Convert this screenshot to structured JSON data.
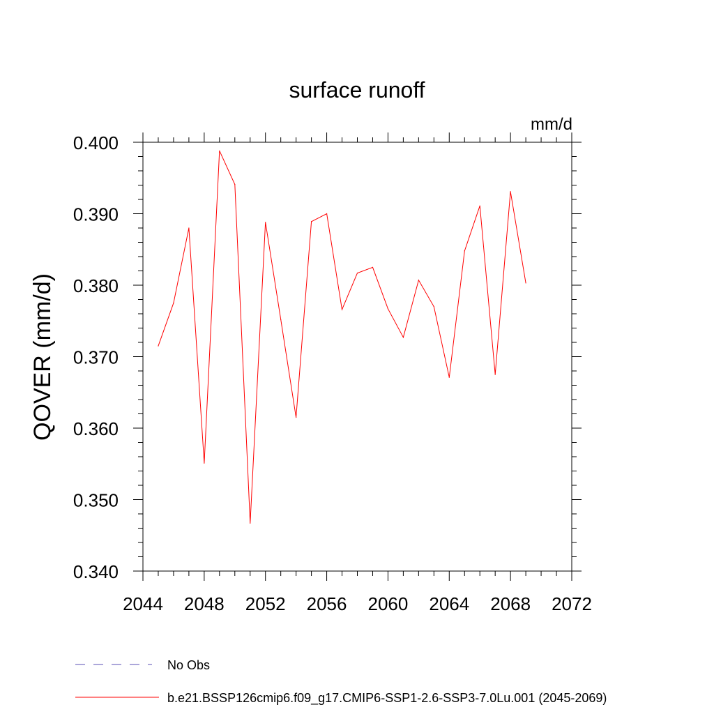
{
  "chart_data": {
    "type": "line",
    "title": "surface runoff",
    "units": "mm/d",
    "ylabel": "QOVER  (mm/d)",
    "xlabel": "",
    "xlim": [
      2044,
      2072
    ],
    "ylim": [
      0.34,
      0.4
    ],
    "x_ticks": [
      "2044",
      "2048",
      "2052",
      "2056",
      "2060",
      "2064",
      "2068",
      "2072"
    ],
    "y_ticks": [
      "0.340",
      "0.350",
      "0.360",
      "0.370",
      "0.380",
      "0.390",
      "0.400"
    ],
    "grid": false,
    "legend_position": "bottom",
    "series": [
      {
        "name": "b.e21.BSSP126cmip6.f09_g17.CMIP6-SSP1-2.6-SSP3-7.0Lu.001 (2045-2069)",
        "color": "#ff0000",
        "style": "solid",
        "x": [
          2045,
          2046,
          2047,
          2048,
          2049,
          2050,
          2051,
          2052,
          2053,
          2054,
          2055,
          2056,
          2057,
          2058,
          2059,
          2060,
          2061,
          2062,
          2063,
          2064,
          2065,
          2066,
          2067,
          2068,
          2069
        ],
        "y": [
          0.3715,
          0.3775,
          0.388,
          0.3551,
          0.3988,
          0.3941,
          0.3467,
          0.3888,
          0.3752,
          0.3615,
          0.3889,
          0.39,
          0.3766,
          0.3817,
          0.3825,
          0.3767,
          0.3727,
          0.3807,
          0.377,
          0.3671,
          0.3848,
          0.3911,
          0.3675,
          0.3931,
          0.3803
        ]
      },
      {
        "name": "No Obs",
        "color": "#5a4fb5",
        "style": "dashed",
        "x": [],
        "y": []
      }
    ]
  }
}
